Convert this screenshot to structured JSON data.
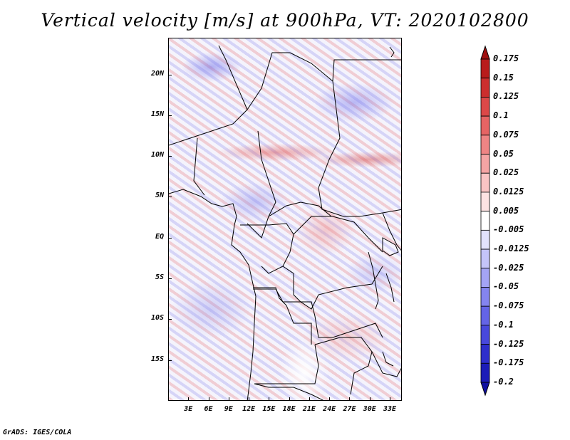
{
  "title": "Vertical velocity [m/s] at 900hPa, VT: 2020102800",
  "footer": "GrADS: IGES/COLA",
  "map": {
    "y_axis_labels": [
      "20N",
      "15N",
      "10N",
      "5N",
      "EQ",
      "5S",
      "10S",
      "15S"
    ],
    "x_axis_labels": [
      "3E",
      "6E",
      "9E",
      "12E",
      "15E",
      "18E",
      "21E",
      "24E",
      "27E",
      "30E",
      "33E"
    ],
    "y_axis_values": [
      20,
      15,
      10,
      5,
      0,
      -5,
      -10,
      -15
    ],
    "x_axis_values": [
      3,
      6,
      9,
      12,
      15,
      18,
      21,
      24,
      27,
      30,
      33
    ],
    "lon_range": [
      0,
      34.8
    ],
    "lat_range": [
      -20,
      24.5
    ]
  },
  "colorbar": {
    "labels": [
      "0.175",
      "0.15",
      "0.125",
      "0.1",
      "0.075",
      "0.05",
      "0.025",
      "0.0125",
      "0.005",
      "-0.005",
      "-0.0125",
      "-0.025",
      "-0.05",
      "-0.075",
      "-0.1",
      "-0.125",
      "-0.175",
      "-0.2"
    ],
    "colors": [
      "#a01010",
      "#b81c1c",
      "#cc2e2e",
      "#dc4848",
      "#e66464",
      "#ef8484",
      "#f5a4a4",
      "#f9c4c4",
      "#fde2e2",
      "#ffffff",
      "#e2e2fd",
      "#c4c4f9",
      "#a4a4f5",
      "#8484ef",
      "#6464e6",
      "#4848dc",
      "#2e2ecc",
      "#1c1cb8",
      "#1010a0"
    ]
  }
}
